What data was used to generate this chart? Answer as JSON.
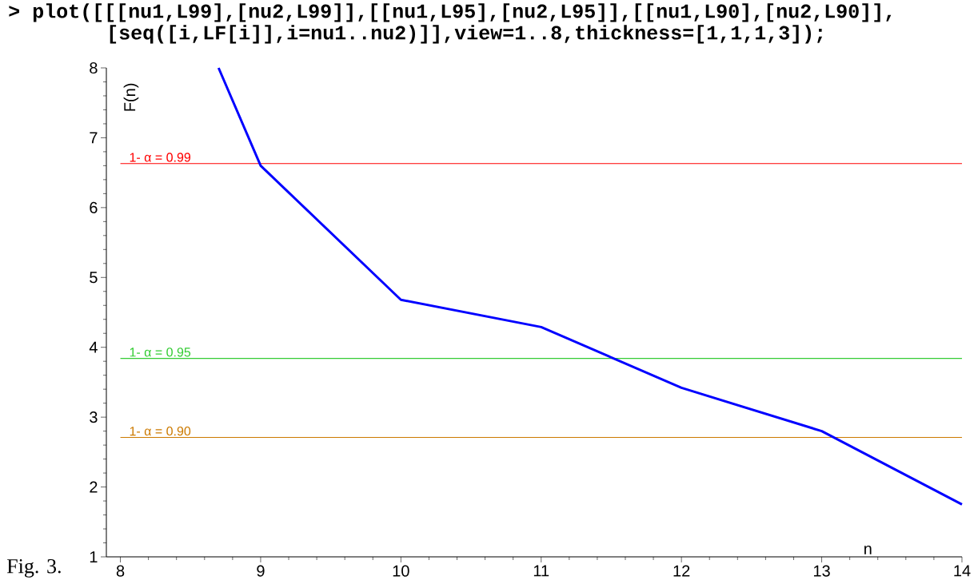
{
  "chart_data": {
    "type": "line",
    "title": "> plot([[[nu1,L99],[nu2,L99]],[[nu1,L95],[nu2,L95]],[[nu1,L90],[nu2,L90]], [seq([i,LF[i]],i=nu1..nu2)]],view=1..8,thickness=[1,1,1,3]);",
    "xlabel": "n",
    "ylabel": "F(n)",
    "x": [
      8.7,
      9,
      10,
      11,
      12,
      13,
      14
    ],
    "series": [
      {
        "color": "#0000ff",
        "values": [
          8,
          6.6,
          4.68,
          4.29,
          3.42,
          2.8,
          1.75
        ]
      }
    ],
    "xlim": [
      7.9,
      14
    ],
    "ylim": [
      1,
      8
    ],
    "xticks": [
      8,
      9,
      10,
      11,
      12,
      13,
      14
    ],
    "yticks": [
      1,
      2,
      3,
      4,
      5,
      6,
      7,
      8
    ],
    "ref_lines": [
      {
        "axis": "y",
        "value": 6.63,
        "color": "#ff0000"
      },
      {
        "axis": "y",
        "value": 3.84,
        "color": "#33cc33"
      },
      {
        "axis": "y",
        "value": 2.71,
        "color": "#cc7a00"
      }
    ],
    "annotations": [
      "Fig. 3.",
      {
        "text": "1- α = 0.99",
        "y": 6.63
      },
      {
        "text": "1- α = 0.95",
        "y": 3.84
      },
      {
        "text": "1- α = 0.90",
        "y": 2.71
      }
    ],
    "marker": "none",
    "line_style": "solid"
  }
}
